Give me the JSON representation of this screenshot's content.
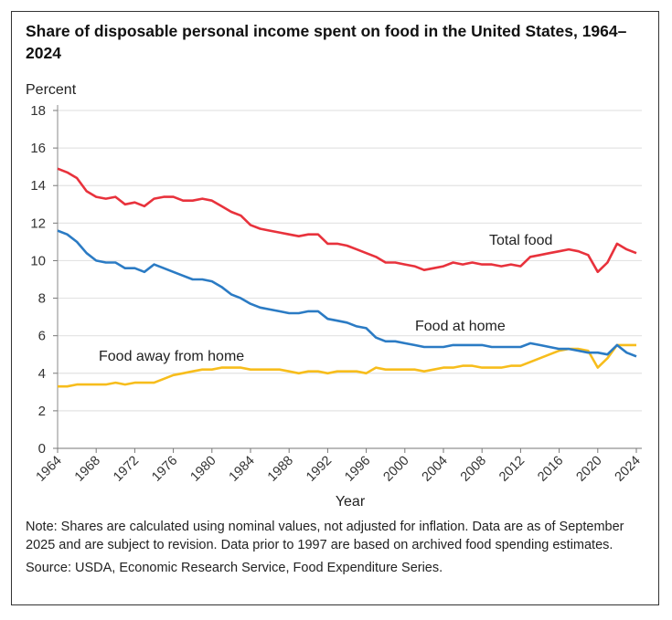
{
  "chart_data": {
    "type": "line",
    "title": "Share of disposable personal income spent on food in the United States, 1964–2024",
    "ylabel": "Percent",
    "xlabel": "Year",
    "ylim": [
      0,
      18
    ],
    "xlim": [
      1964,
      2024
    ],
    "yticks": [
      0,
      2,
      4,
      6,
      8,
      10,
      12,
      14,
      16,
      18
    ],
    "xticks": [
      1964,
      1968,
      1972,
      1976,
      1980,
      1984,
      1988,
      1992,
      1996,
      2000,
      2004,
      2008,
      2012,
      2016,
      2020,
      2024
    ],
    "grid": "horizontal",
    "x_start": 1964,
    "series": [
      {
        "name": "Total food",
        "color": "#e8323c",
        "values": [
          14.9,
          14.7,
          14.4,
          13.7,
          13.4,
          13.3,
          13.4,
          13.0,
          13.1,
          12.9,
          13.3,
          13.4,
          13.4,
          13.2,
          13.2,
          13.3,
          13.2,
          12.9,
          12.6,
          12.4,
          11.9,
          11.7,
          11.6,
          11.5,
          11.4,
          11.3,
          11.4,
          11.4,
          10.9,
          10.9,
          10.8,
          10.6,
          10.4,
          10.2,
          9.9,
          9.9,
          9.8,
          9.7,
          9.5,
          9.6,
          9.7,
          9.9,
          9.8,
          9.9,
          9.8,
          9.8,
          9.7,
          9.8,
          9.7,
          10.2,
          10.3,
          10.4,
          10.5,
          10.6,
          10.5,
          10.3,
          9.4,
          9.9,
          10.9,
          10.6,
          10.4
        ]
      },
      {
        "name": "Food at home",
        "color": "#2b7bc4",
        "values": [
          11.6,
          11.4,
          11.0,
          10.4,
          10.0,
          9.9,
          9.9,
          9.6,
          9.6,
          9.4,
          9.8,
          9.6,
          9.4,
          9.2,
          9.0,
          9.0,
          8.9,
          8.6,
          8.2,
          8.0,
          7.7,
          7.5,
          7.4,
          7.3,
          7.2,
          7.2,
          7.3,
          7.3,
          6.9,
          6.8,
          6.7,
          6.5,
          6.4,
          5.9,
          5.7,
          5.7,
          5.6,
          5.5,
          5.4,
          5.4,
          5.4,
          5.5,
          5.5,
          5.5,
          5.5,
          5.4,
          5.4,
          5.4,
          5.4,
          5.6,
          5.5,
          5.4,
          5.3,
          5.3,
          5.2,
          5.1,
          5.1,
          5.0,
          5.5,
          5.1,
          4.9
        ]
      },
      {
        "name": "Food away from home",
        "color": "#f7bd1c",
        "values": [
          3.3,
          3.3,
          3.4,
          3.4,
          3.4,
          3.4,
          3.5,
          3.4,
          3.5,
          3.5,
          3.5,
          3.7,
          3.9,
          4.0,
          4.1,
          4.2,
          4.2,
          4.3,
          4.3,
          4.3,
          4.2,
          4.2,
          4.2,
          4.2,
          4.1,
          4.0,
          4.1,
          4.1,
          4.0,
          4.1,
          4.1,
          4.1,
          4.0,
          4.3,
          4.2,
          4.2,
          4.2,
          4.2,
          4.1,
          4.2,
          4.3,
          4.3,
          4.4,
          4.4,
          4.3,
          4.3,
          4.3,
          4.4,
          4.4,
          4.6,
          4.8,
          5.0,
          5.2,
          5.3,
          5.3,
          5.2,
          4.3,
          4.8,
          5.5,
          5.5,
          5.5
        ]
      }
    ],
    "note": "Note: Shares are calculated using nominal values, not adjusted for inflation. Data are as of September 2025 and are subject to revision. Data prior to 1997 are based on archived food spending estimates.",
    "source": "Source: USDA, Economic Research Service, Food Expenditure Series."
  }
}
